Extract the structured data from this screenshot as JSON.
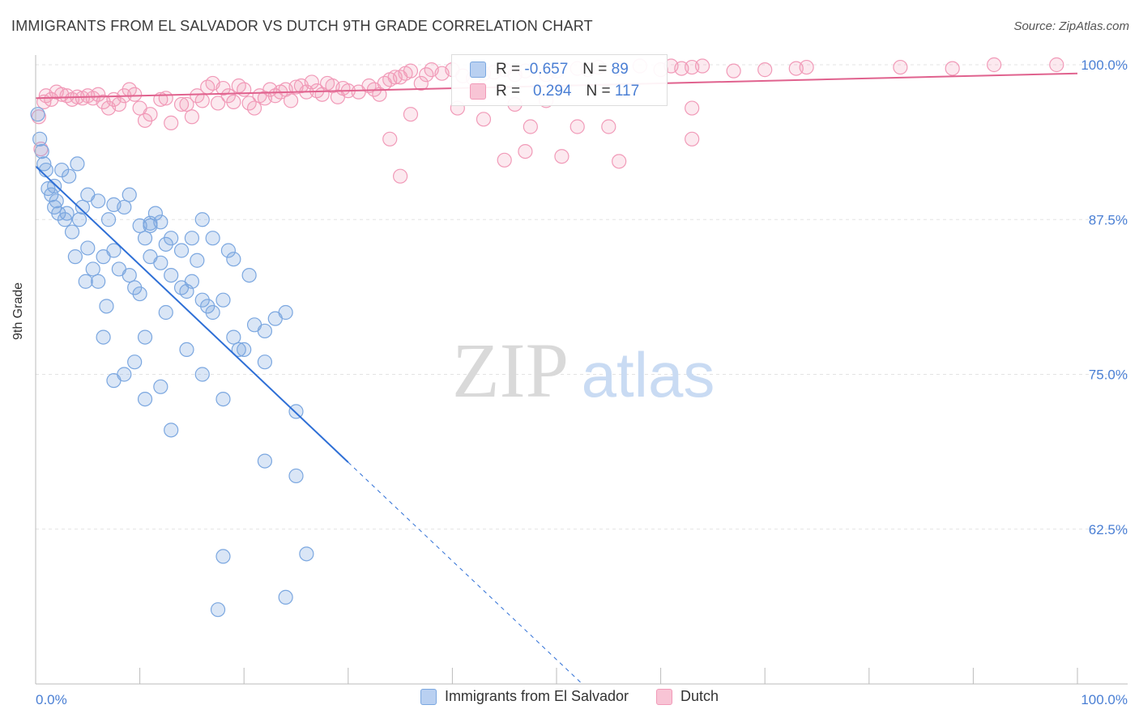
{
  "title": "IMMIGRANTS FROM EL SALVADOR VS DUTCH 9TH GRADE CORRELATION CHART",
  "source": "Source: ZipAtlas.com",
  "watermark": {
    "zip": "ZIP",
    "atlas": "atlas"
  },
  "colors": {
    "blue": "#7ba7e0",
    "blue_line": "#2e6fd6",
    "pink": "#f19ab8",
    "pink_line": "#e0628e",
    "axis_text": "#4a7fd4"
  },
  "stats": {
    "r_label": "R =",
    "n_label": "N =",
    "blue": {
      "r": "-0.657",
      "n": "89"
    },
    "pink": {
      "r": "0.294",
      "n": "117"
    }
  },
  "legend": {
    "blue_label": "Immigrants from El Salvador",
    "pink_label": "Dutch"
  },
  "chart_data": {
    "type": "scatter",
    "ylabel": "9th Grade",
    "xlim": [
      0,
      100
    ],
    "ylim": [
      50,
      100
    ],
    "x_tick_labels": [
      "0.0%",
      "100.0%"
    ],
    "y_ticks": [
      62.5,
      75.0,
      87.5,
      100.0
    ],
    "y_tick_labels": [
      "62.5%",
      "75.0%",
      "87.5%",
      "100.0%"
    ],
    "grid": true,
    "legend_position": "bottom",
    "series": [
      {
        "name": "Immigrants from El Salvador",
        "color": "#7ba7e0",
        "trend": {
          "x0": 0,
          "y0": 91.8,
          "x1": 30,
          "y1": 67.9,
          "dash_to_x": 52.5
        },
        "points": [
          [
            0.2,
            96
          ],
          [
            0.4,
            94
          ],
          [
            0.6,
            93
          ],
          [
            0.8,
            92
          ],
          [
            1,
            91.5
          ],
          [
            1.2,
            90
          ],
          [
            1.5,
            89.5
          ],
          [
            1.8,
            90.2
          ],
          [
            2,
            89
          ],
          [
            2.5,
            91.5
          ],
          [
            2.2,
            88
          ],
          [
            3,
            88
          ],
          [
            2.8,
            87.5
          ],
          [
            3.5,
            86.5
          ],
          [
            4.2,
            87.5
          ],
          [
            4.5,
            88.5
          ],
          [
            5,
            89.5
          ],
          [
            6,
            89
          ],
          [
            7,
            87.5
          ],
          [
            7.5,
            88.7
          ],
          [
            8.5,
            88.5
          ],
          [
            9,
            89.5
          ],
          [
            10,
            87
          ],
          [
            10.5,
            86
          ],
          [
            11,
            87
          ],
          [
            11.5,
            88
          ],
          [
            12,
            87.3
          ],
          [
            12.5,
            85.5
          ],
          [
            13,
            86
          ],
          [
            14,
            85
          ],
          [
            15,
            86
          ],
          [
            16,
            87.5
          ],
          [
            3.8,
            84.5
          ],
          [
            5,
            85.2
          ],
          [
            6.5,
            84.5
          ],
          [
            7.5,
            85
          ],
          [
            8,
            83.5
          ],
          [
            9,
            83
          ],
          [
            9.5,
            82
          ],
          [
            10,
            81.5
          ],
          [
            5.5,
            83.5
          ],
          [
            4.8,
            82.5
          ],
          [
            6,
            82.5
          ],
          [
            11,
            84.5
          ],
          [
            12,
            84
          ],
          [
            13,
            83
          ],
          [
            14,
            82
          ],
          [
            15,
            82.5
          ],
          [
            16,
            81
          ],
          [
            16.5,
            80.5
          ],
          [
            17,
            80
          ],
          [
            18,
            81
          ],
          [
            19,
            78
          ],
          [
            19.5,
            77
          ],
          [
            20,
            77
          ],
          [
            21,
            79
          ],
          [
            22,
            78.5
          ],
          [
            23,
            79.5
          ],
          [
            24,
            80
          ],
          [
            20.5,
            83
          ],
          [
            19,
            84.3
          ],
          [
            18.5,
            85
          ],
          [
            17,
            86
          ],
          [
            15.5,
            84.2
          ],
          [
            14.5,
            81.7
          ],
          [
            12.5,
            80
          ],
          [
            10.5,
            78
          ],
          [
            9.5,
            76
          ],
          [
            8.5,
            75
          ],
          [
            7.5,
            74.5
          ],
          [
            12,
            74
          ],
          [
            16,
            75
          ],
          [
            18,
            73
          ],
          [
            22,
            76
          ],
          [
            25,
            72
          ],
          [
            13,
            70.5
          ],
          [
            10.5,
            73
          ],
          [
            14.5,
            77
          ],
          [
            6.5,
            78
          ],
          [
            22,
            68
          ],
          [
            25,
            66.8
          ],
          [
            26,
            60.5
          ],
          [
            24,
            57
          ],
          [
            17.5,
            56
          ],
          [
            18,
            60.3
          ],
          [
            11,
            87.2
          ],
          [
            6.8,
            80.5
          ],
          [
            3.2,
            91
          ],
          [
            1.8,
            88.5
          ],
          [
            4,
            92
          ]
        ]
      },
      {
        "name": "Dutch",
        "color": "#f19ab8",
        "trend": {
          "x0": 0,
          "y0": 97.3,
          "x1": 100,
          "y1": 99.3
        },
        "points": [
          [
            0.3,
            95.8
          ],
          [
            0.5,
            93.2
          ],
          [
            0.8,
            97
          ],
          [
            1,
            97.5
          ],
          [
            1.5,
            97.2
          ],
          [
            2,
            97.8
          ],
          [
            2.5,
            97.6
          ],
          [
            3,
            97.5
          ],
          [
            3.5,
            97.2
          ],
          [
            4,
            97.4
          ],
          [
            4.5,
            97.3
          ],
          [
            5,
            97.5
          ],
          [
            5.5,
            97.3
          ],
          [
            6,
            97.6
          ],
          [
            6.5,
            97
          ],
          [
            7,
            96.5
          ],
          [
            7.5,
            97.2
          ],
          [
            8,
            96.8
          ],
          [
            8.5,
            97.5
          ],
          [
            9,
            98
          ],
          [
            9.5,
            97.6
          ],
          [
            10,
            96.5
          ],
          [
            10.5,
            95.5
          ],
          [
            11,
            96
          ],
          [
            12,
            97.2
          ],
          [
            12.5,
            97.3
          ],
          [
            13,
            95.3
          ],
          [
            14,
            96.8
          ],
          [
            14.5,
            96.8
          ],
          [
            15,
            95.8
          ],
          [
            15.5,
            97.5
          ],
          [
            16,
            97.1
          ],
          [
            16.5,
            98.2
          ],
          [
            17,
            98.5
          ],
          [
            17.5,
            96.9
          ],
          [
            18,
            98.1
          ],
          [
            18.5,
            97.5
          ],
          [
            19,
            97
          ],
          [
            19.5,
            98.3
          ],
          [
            20,
            98
          ],
          [
            20.5,
            96.9
          ],
          [
            21,
            96.5
          ],
          [
            21.5,
            97.5
          ],
          [
            22,
            97.3
          ],
          [
            22.5,
            98
          ],
          [
            23,
            97.5
          ],
          [
            23.5,
            97.8
          ],
          [
            24,
            98
          ],
          [
            24.5,
            97.1
          ],
          [
            25,
            98.2
          ],
          [
            25.5,
            98.3
          ],
          [
            26,
            97.8
          ],
          [
            26.5,
            98.6
          ],
          [
            27,
            97.9
          ],
          [
            27.5,
            97.6
          ],
          [
            28,
            98.5
          ],
          [
            28.5,
            98.3
          ],
          [
            29,
            97.4
          ],
          [
            29.5,
            98.1
          ],
          [
            30,
            97.9
          ],
          [
            31,
            97.8
          ],
          [
            32,
            98.3
          ],
          [
            32.5,
            98
          ],
          [
            33,
            97.6
          ],
          [
            33.5,
            98.5
          ],
          [
            34,
            98.8
          ],
          [
            34.5,
            99
          ],
          [
            35,
            99
          ],
          [
            35.5,
            99.3
          ],
          [
            36,
            99.5
          ],
          [
            37,
            98.5
          ],
          [
            37.5,
            99.2
          ],
          [
            38,
            99.6
          ],
          [
            39,
            99.3
          ],
          [
            40,
            99.6
          ],
          [
            41,
            99.1
          ],
          [
            42,
            98.9
          ],
          [
            43,
            99.3
          ],
          [
            44,
            99.4
          ],
          [
            45,
            99.6
          ],
          [
            46,
            99.2
          ],
          [
            47,
            99.5
          ],
          [
            49,
            99.2
          ],
          [
            50,
            99.5
          ],
          [
            52,
            99.7
          ],
          [
            53,
            99.6
          ],
          [
            54,
            99.8
          ],
          [
            56,
            99.7
          ],
          [
            58,
            99.9
          ],
          [
            60,
            99.6
          ],
          [
            61,
            99.9
          ],
          [
            62,
            99.7
          ],
          [
            63,
            99.8
          ],
          [
            64,
            99.9
          ],
          [
            67,
            99.5
          ],
          [
            70,
            99.6
          ],
          [
            73,
            99.7
          ],
          [
            74,
            99.8
          ],
          [
            83,
            99.8
          ],
          [
            88,
            99.7
          ],
          [
            92,
            100
          ],
          [
            98,
            100
          ],
          [
            40.5,
            96.5
          ],
          [
            43,
            95.6
          ],
          [
            47.5,
            95
          ],
          [
            52,
            95
          ],
          [
            49,
            97.1
          ],
          [
            46,
            96.8
          ],
          [
            36,
            96
          ],
          [
            34,
            94
          ],
          [
            47,
            93
          ],
          [
            55,
            95
          ],
          [
            50.5,
            92.6
          ],
          [
            56,
            92.2
          ],
          [
            63,
            94
          ],
          [
            63,
            96.5
          ],
          [
            45,
            92.3
          ],
          [
            35,
            91
          ]
        ]
      }
    ]
  }
}
